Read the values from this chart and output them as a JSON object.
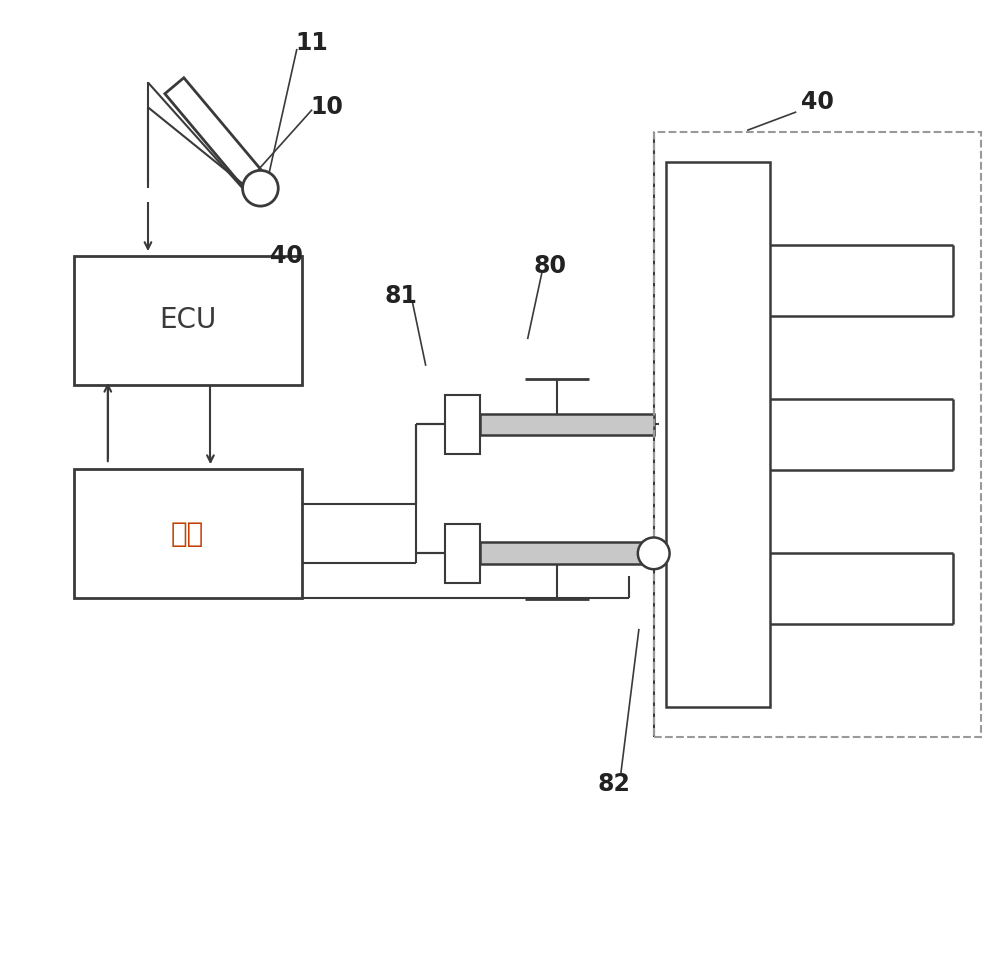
{
  "bg_color": "#ffffff",
  "line_color": "#3a3a3a",
  "dashed_line_color": "#999999",
  "fig_width": 10.0,
  "fig_height": 9.59
}
